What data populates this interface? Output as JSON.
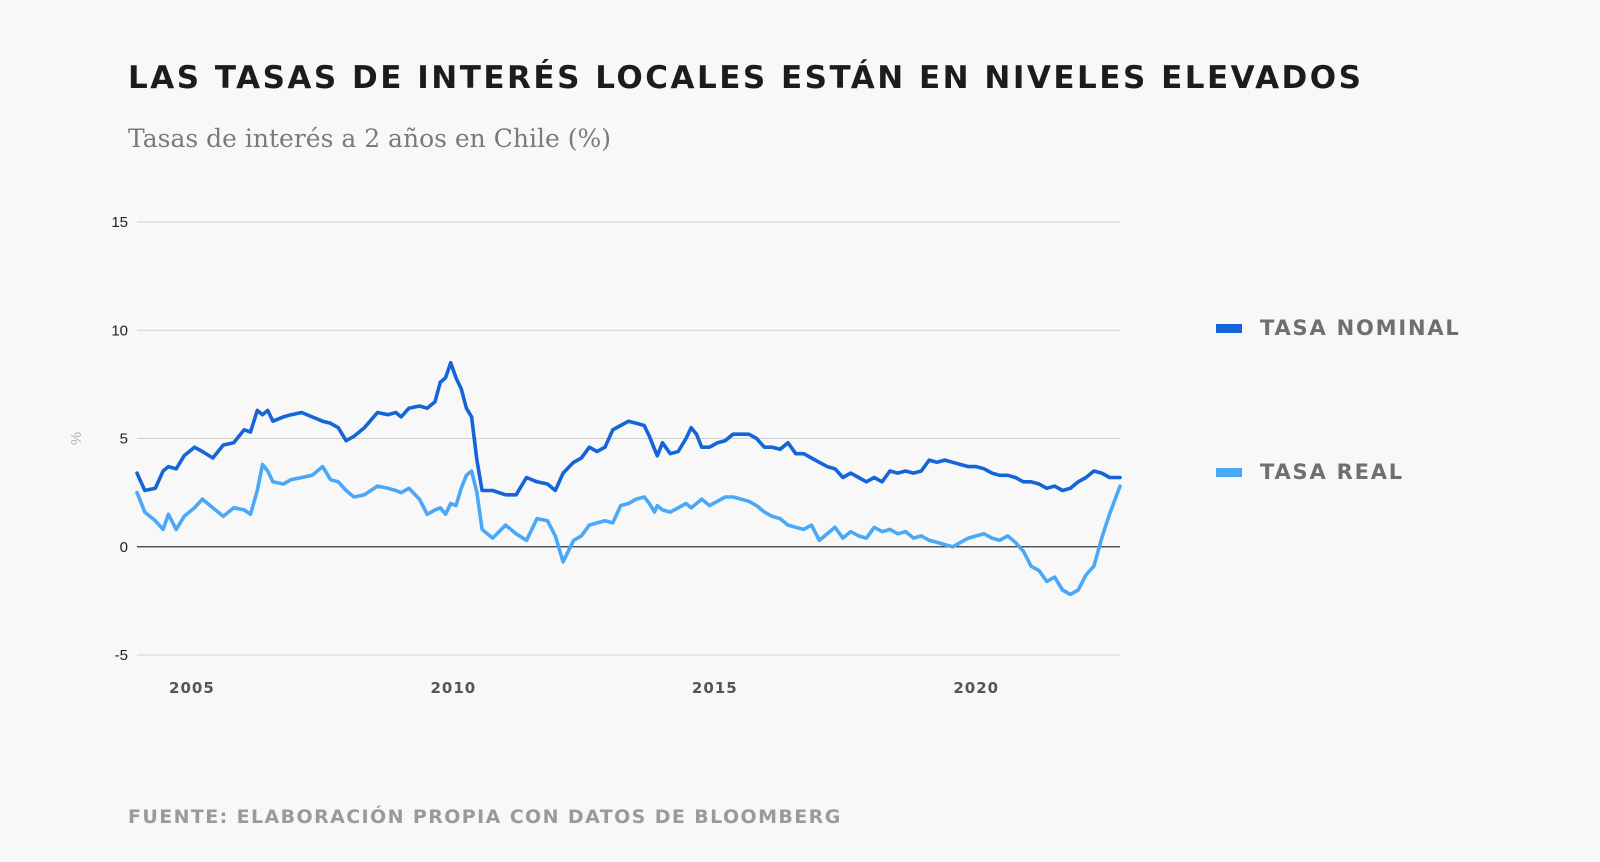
{
  "chart_data": {
    "type": "line",
    "title": "LAS TASAS DE INTERÉS LOCALES ESTÁN EN NIVELES ELEVADOS",
    "subtitle": "Tasas de interés a 2 años en Chile (%)",
    "xlabel": "",
    "ylabel": "%",
    "ylim": [
      -5,
      15
    ],
    "xlim": [
      2003.95,
      2022.75
    ],
    "yticks": [
      15,
      10,
      5,
      0,
      -5
    ],
    "xticks": [
      2005,
      2010,
      2015,
      2020
    ],
    "zero_line": true,
    "legend_position": "right",
    "series": [
      {
        "name": "TASA NOMINAL",
        "color": "#1565d8",
        "points": [
          [
            2003.95,
            3.4
          ],
          [
            2004.1,
            2.6
          ],
          [
            2004.3,
            2.7
          ],
          [
            2004.45,
            3.5
          ],
          [
            2004.55,
            3.7
          ],
          [
            2004.7,
            3.6
          ],
          [
            2004.85,
            4.2
          ],
          [
            2005.05,
            4.6
          ],
          [
            2005.2,
            4.4
          ],
          [
            2005.4,
            4.1
          ],
          [
            2005.6,
            4.7
          ],
          [
            2005.8,
            4.8
          ],
          [
            2006.0,
            5.4
          ],
          [
            2006.12,
            5.3
          ],
          [
            2006.25,
            6.3
          ],
          [
            2006.35,
            6.1
          ],
          [
            2006.45,
            6.3
          ],
          [
            2006.55,
            5.8
          ],
          [
            2006.75,
            6.0
          ],
          [
            2006.9,
            6.1
          ],
          [
            2007.1,
            6.2
          ],
          [
            2007.3,
            6.0
          ],
          [
            2007.5,
            5.8
          ],
          [
            2007.65,
            5.7
          ],
          [
            2007.8,
            5.5
          ],
          [
            2007.95,
            4.9
          ],
          [
            2008.1,
            5.1
          ],
          [
            2008.3,
            5.5
          ],
          [
            2008.55,
            6.2
          ],
          [
            2008.75,
            6.1
          ],
          [
            2008.9,
            6.2
          ],
          [
            2009.0,
            6.0
          ],
          [
            2009.15,
            6.4
          ],
          [
            2009.35,
            6.5
          ],
          [
            2009.5,
            6.4
          ],
          [
            2009.65,
            6.7
          ],
          [
            2009.75,
            7.6
          ],
          [
            2009.85,
            7.8
          ],
          [
            2009.95,
            8.5
          ],
          [
            2010.05,
            7.8
          ],
          [
            2010.15,
            7.3
          ],
          [
            2010.25,
            6.4
          ],
          [
            2010.35,
            6.0
          ],
          [
            2010.45,
            4.0
          ],
          [
            2010.55,
            2.6
          ],
          [
            2010.75,
            2.6
          ],
          [
            2011.0,
            2.4
          ],
          [
            2011.2,
            2.4
          ],
          [
            2011.4,
            3.2
          ],
          [
            2011.6,
            3.0
          ],
          [
            2011.8,
            2.9
          ],
          [
            2011.95,
            2.6
          ],
          [
            2012.1,
            3.4
          ],
          [
            2012.3,
            3.9
          ],
          [
            2012.45,
            4.1
          ],
          [
            2012.6,
            4.6
          ],
          [
            2012.75,
            4.4
          ],
          [
            2012.9,
            4.6
          ],
          [
            2013.05,
            5.4
          ],
          [
            2013.2,
            5.6
          ],
          [
            2013.35,
            5.8
          ],
          [
            2013.5,
            5.7
          ],
          [
            2013.65,
            5.6
          ],
          [
            2013.75,
            5.1
          ],
          [
            2013.85,
            4.5
          ],
          [
            2013.9,
            4.2
          ],
          [
            2014.0,
            4.8
          ],
          [
            2014.15,
            4.3
          ],
          [
            2014.3,
            4.4
          ],
          [
            2014.45,
            5.0
          ],
          [
            2014.55,
            5.5
          ],
          [
            2014.65,
            5.2
          ],
          [
            2014.75,
            4.6
          ],
          [
            2014.9,
            4.6
          ],
          [
            2015.05,
            4.8
          ],
          [
            2015.2,
            4.9
          ],
          [
            2015.35,
            5.2
          ],
          [
            2015.5,
            5.2
          ],
          [
            2015.65,
            5.2
          ],
          [
            2015.8,
            5.0
          ],
          [
            2015.95,
            4.6
          ],
          [
            2016.1,
            4.6
          ],
          [
            2016.25,
            4.5
          ],
          [
            2016.4,
            4.8
          ],
          [
            2016.55,
            4.3
          ],
          [
            2016.7,
            4.3
          ],
          [
            2016.85,
            4.1
          ],
          [
            2017.0,
            3.9
          ],
          [
            2017.15,
            3.7
          ],
          [
            2017.3,
            3.6
          ],
          [
            2017.45,
            3.2
          ],
          [
            2017.6,
            3.4
          ],
          [
            2017.75,
            3.2
          ],
          [
            2017.9,
            3.0
          ],
          [
            2018.05,
            3.2
          ],
          [
            2018.2,
            3.0
          ],
          [
            2018.35,
            3.5
          ],
          [
            2018.5,
            3.4
          ],
          [
            2018.65,
            3.5
          ],
          [
            2018.8,
            3.4
          ],
          [
            2018.95,
            3.5
          ],
          [
            2019.1,
            4.0
          ],
          [
            2019.25,
            3.9
          ],
          [
            2019.4,
            4.0
          ],
          [
            2019.55,
            3.9
          ],
          [
            2019.7,
            3.8
          ],
          [
            2019.85,
            3.7
          ],
          [
            2020.0,
            3.7
          ],
          [
            2020.15,
            3.6
          ],
          [
            2020.3,
            3.4
          ],
          [
            2020.45,
            3.3
          ],
          [
            2020.6,
            3.3
          ],
          [
            2020.75,
            3.2
          ],
          [
            2020.9,
            3.0
          ],
          [
            2021.05,
            3.0
          ],
          [
            2021.2,
            2.9
          ],
          [
            2021.35,
            2.7
          ],
          [
            2021.5,
            2.8
          ],
          [
            2021.65,
            2.6
          ],
          [
            2021.8,
            2.7
          ],
          [
            2021.95,
            3.0
          ],
          [
            2022.1,
            3.2
          ],
          [
            2022.25,
            3.5
          ],
          [
            2022.4,
            3.4
          ],
          [
            2022.55,
            3.2
          ],
          [
            2022.75,
            3.2
          ]
        ]
      },
      {
        "name": "TASA REAL",
        "color": "#4aa8f7",
        "points": [
          [
            2003.95,
            2.5
          ],
          [
            2004.1,
            1.6
          ],
          [
            2004.3,
            1.2
          ],
          [
            2004.45,
            0.8
          ],
          [
            2004.55,
            1.5
          ],
          [
            2004.7,
            0.8
          ],
          [
            2004.85,
            1.4
          ],
          [
            2005.05,
            1.8
          ],
          [
            2005.2,
            2.2
          ],
          [
            2005.4,
            1.8
          ],
          [
            2005.6,
            1.4
          ],
          [
            2005.8,
            1.8
          ],
          [
            2006.0,
            1.7
          ],
          [
            2006.12,
            1.5
          ],
          [
            2006.25,
            2.6
          ],
          [
            2006.35,
            3.8
          ],
          [
            2006.45,
            3.5
          ],
          [
            2006.55,
            3.0
          ],
          [
            2006.75,
            2.9
          ],
          [
            2006.9,
            3.1
          ],
          [
            2007.1,
            3.2
          ],
          [
            2007.3,
            3.3
          ],
          [
            2007.5,
            3.7
          ],
          [
            2007.65,
            3.1
          ],
          [
            2007.8,
            3.0
          ],
          [
            2007.95,
            2.6
          ],
          [
            2008.1,
            2.3
          ],
          [
            2008.3,
            2.4
          ],
          [
            2008.55,
            2.8
          ],
          [
            2008.75,
            2.7
          ],
          [
            2008.9,
            2.6
          ],
          [
            2009.0,
            2.5
          ],
          [
            2009.15,
            2.7
          ],
          [
            2009.35,
            2.2
          ],
          [
            2009.5,
            1.5
          ],
          [
            2009.65,
            1.7
          ],
          [
            2009.75,
            1.8
          ],
          [
            2009.85,
            1.5
          ],
          [
            2009.95,
            2.0
          ],
          [
            2010.05,
            1.9
          ],
          [
            2010.15,
            2.7
          ],
          [
            2010.25,
            3.3
          ],
          [
            2010.35,
            3.5
          ],
          [
            2010.45,
            2.5
          ],
          [
            2010.55,
            0.8
          ],
          [
            2010.75,
            0.4
          ],
          [
            2011.0,
            1.0
          ],
          [
            2011.2,
            0.6
          ],
          [
            2011.4,
            0.3
          ],
          [
            2011.6,
            1.3
          ],
          [
            2011.8,
            1.2
          ],
          [
            2011.95,
            0.5
          ],
          [
            2012.1,
            -0.7
          ],
          [
            2012.3,
            0.3
          ],
          [
            2012.45,
            0.5
          ],
          [
            2012.6,
            1.0
          ],
          [
            2012.75,
            1.1
          ],
          [
            2012.9,
            1.2
          ],
          [
            2013.05,
            1.1
          ],
          [
            2013.2,
            1.9
          ],
          [
            2013.35,
            2.0
          ],
          [
            2013.5,
            2.2
          ],
          [
            2013.65,
            2.3
          ],
          [
            2013.75,
            2.0
          ],
          [
            2013.85,
            1.6
          ],
          [
            2013.9,
            1.9
          ],
          [
            2014.0,
            1.7
          ],
          [
            2014.15,
            1.6
          ],
          [
            2014.3,
            1.8
          ],
          [
            2014.45,
            2.0
          ],
          [
            2014.55,
            1.8
          ],
          [
            2014.65,
            2.0
          ],
          [
            2014.75,
            2.2
          ],
          [
            2014.9,
            1.9
          ],
          [
            2015.05,
            2.1
          ],
          [
            2015.2,
            2.3
          ],
          [
            2015.35,
            2.3
          ],
          [
            2015.5,
            2.2
          ],
          [
            2015.65,
            2.1
          ],
          [
            2015.8,
            1.9
          ],
          [
            2015.95,
            1.6
          ],
          [
            2016.1,
            1.4
          ],
          [
            2016.25,
            1.3
          ],
          [
            2016.4,
            1.0
          ],
          [
            2016.55,
            0.9
          ],
          [
            2016.7,
            0.8
          ],
          [
            2016.85,
            1.0
          ],
          [
            2017.0,
            0.3
          ],
          [
            2017.15,
            0.6
          ],
          [
            2017.3,
            0.9
          ],
          [
            2017.45,
            0.4
          ],
          [
            2017.6,
            0.7
          ],
          [
            2017.75,
            0.5
          ],
          [
            2017.9,
            0.4
          ],
          [
            2018.05,
            0.9
          ],
          [
            2018.2,
            0.7
          ],
          [
            2018.35,
            0.8
          ],
          [
            2018.5,
            0.6
          ],
          [
            2018.65,
            0.7
          ],
          [
            2018.8,
            0.4
          ],
          [
            2018.95,
            0.5
          ],
          [
            2019.1,
            0.3
          ],
          [
            2019.25,
            0.2
          ],
          [
            2019.4,
            0.1
          ],
          [
            2019.55,
            0.0
          ],
          [
            2019.7,
            0.2
          ],
          [
            2019.85,
            0.4
          ],
          [
            2020.0,
            0.5
          ],
          [
            2020.15,
            0.6
          ],
          [
            2020.3,
            0.4
          ],
          [
            2020.45,
            0.3
          ],
          [
            2020.6,
            0.5
          ],
          [
            2020.75,
            0.2
          ],
          [
            2020.9,
            -0.2
          ],
          [
            2021.05,
            -0.9
          ],
          [
            2021.2,
            -1.1
          ],
          [
            2021.35,
            -1.6
          ],
          [
            2021.5,
            -1.4
          ],
          [
            2021.65,
            -2.0
          ],
          [
            2021.8,
            -2.2
          ],
          [
            2021.95,
            -2.0
          ],
          [
            2022.1,
            -1.3
          ],
          [
            2022.25,
            -0.9
          ],
          [
            2022.4,
            0.4
          ],
          [
            2022.55,
            1.5
          ],
          [
            2022.75,
            2.8
          ]
        ]
      }
    ]
  }
}
